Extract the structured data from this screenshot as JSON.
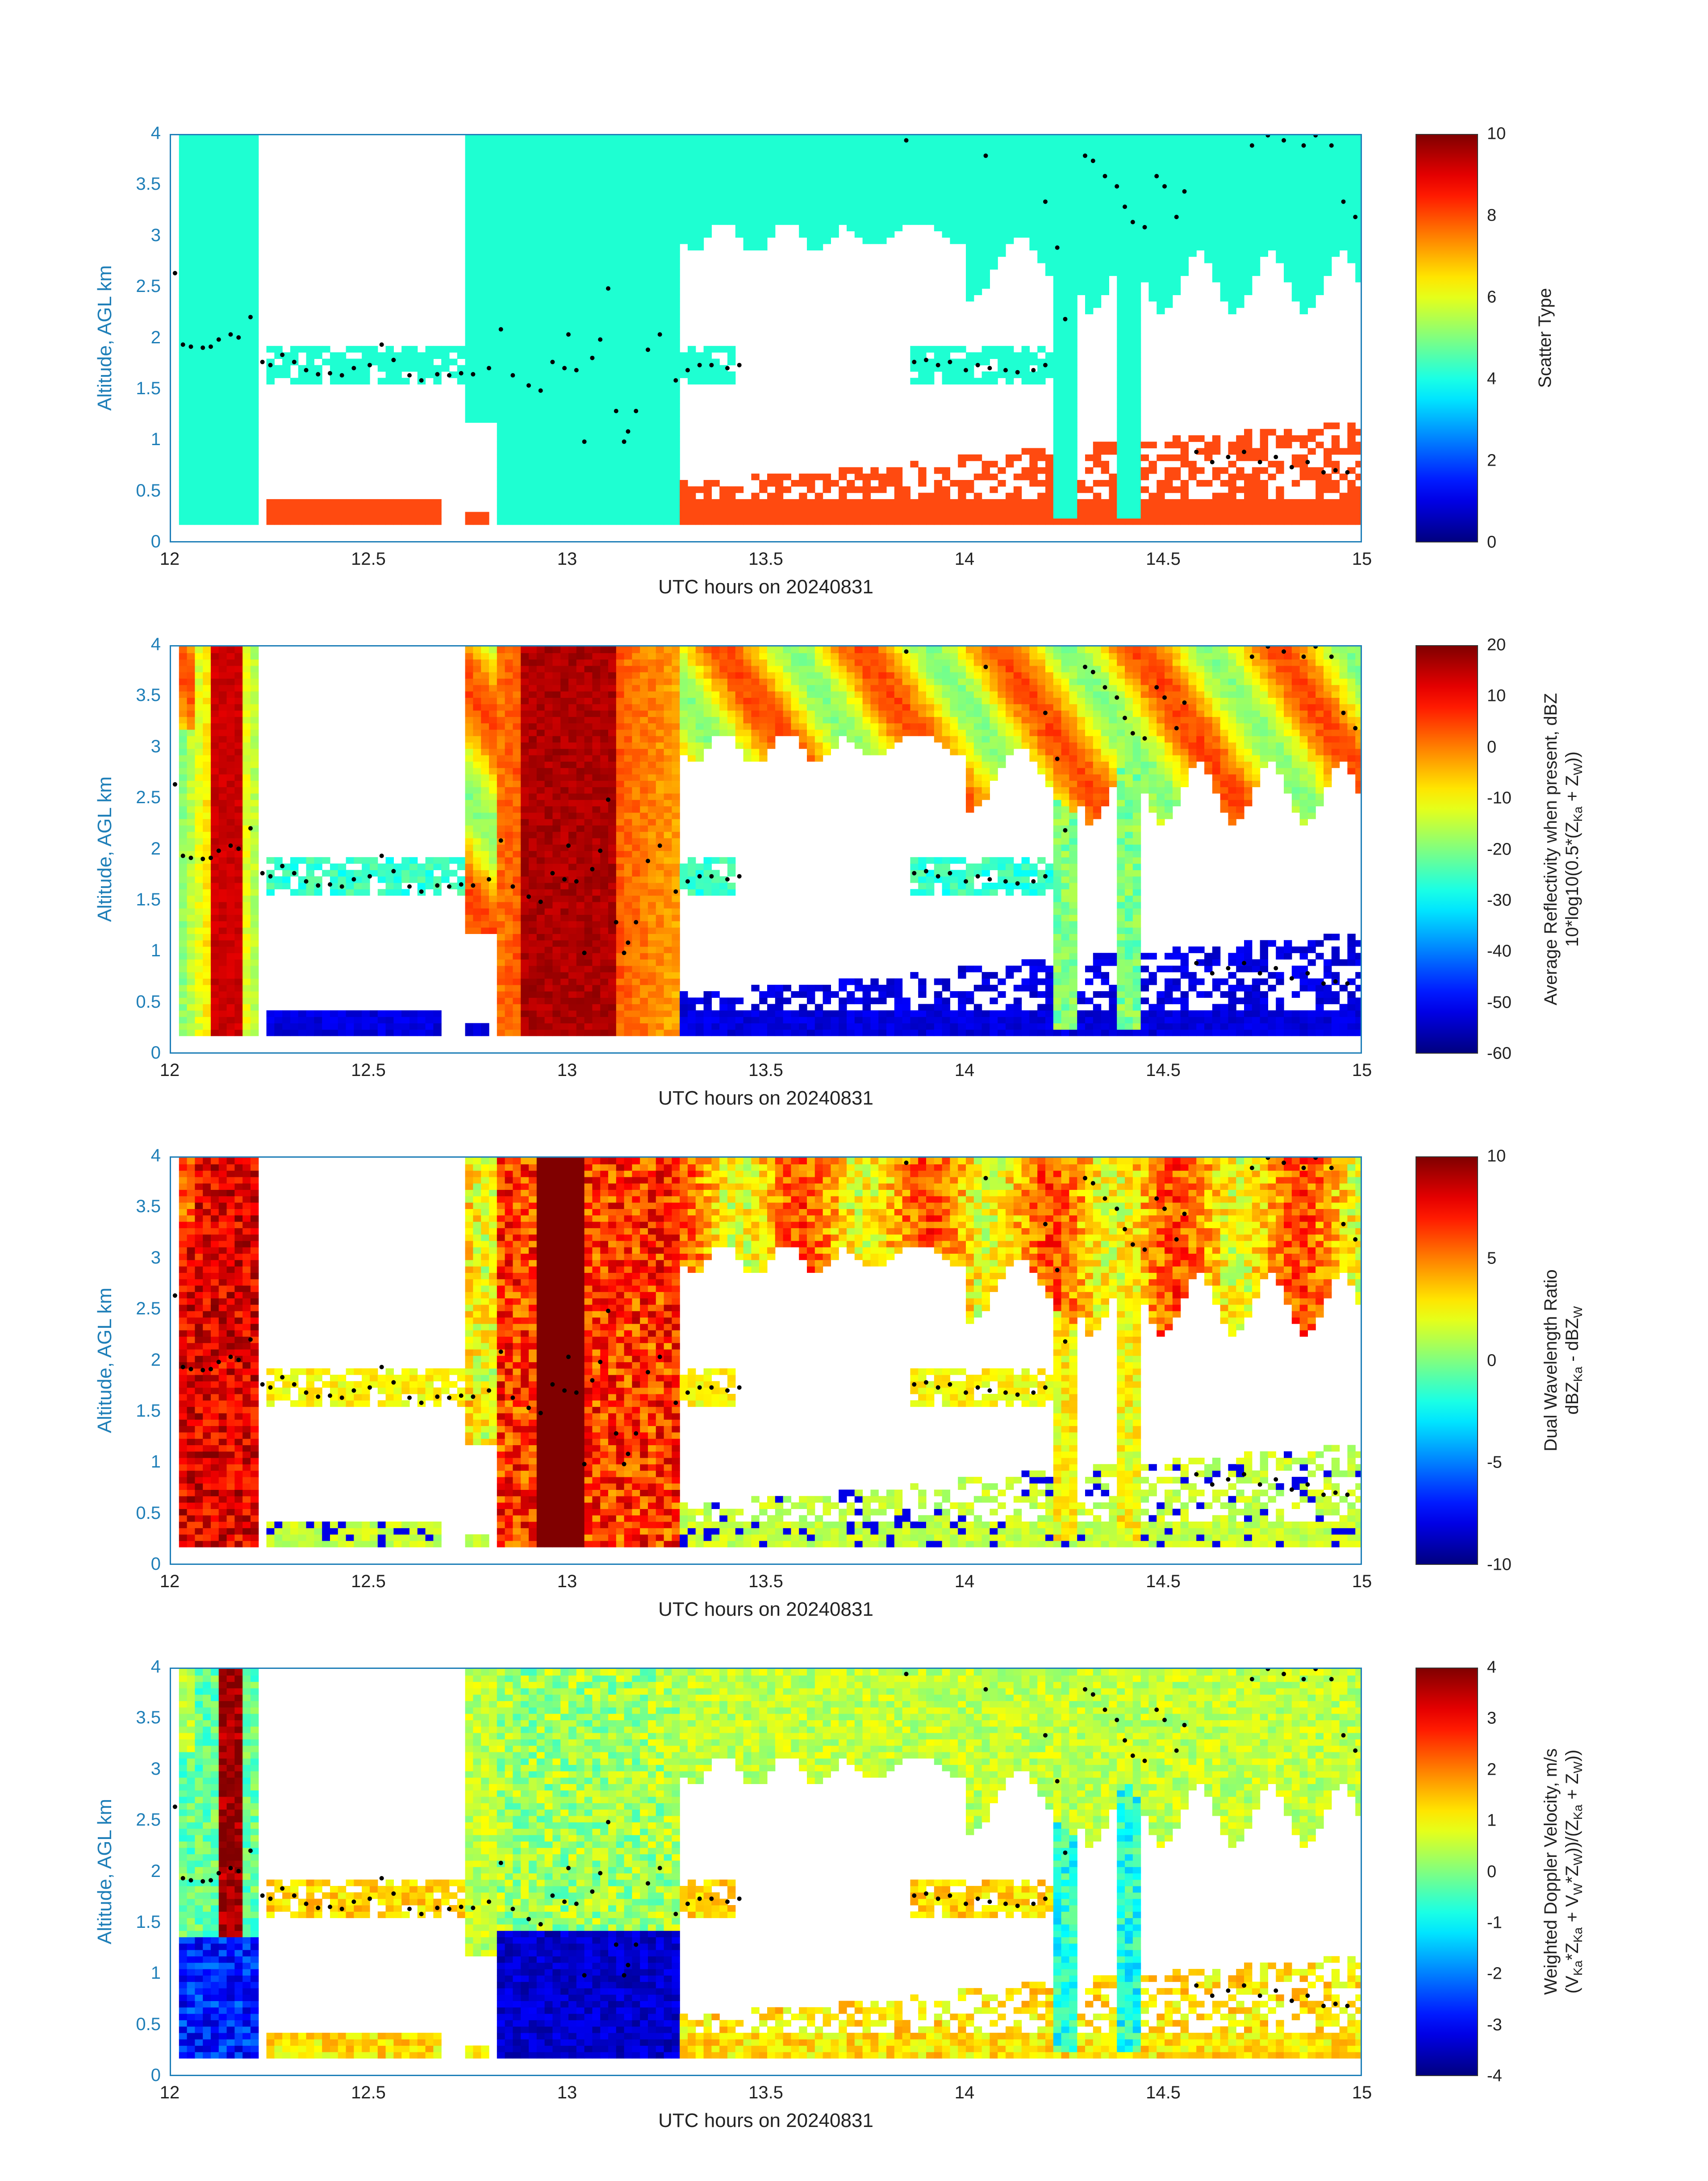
{
  "chart_data": [
    {
      "type": "heatmap",
      "xlabel": "UTC hours on 20240831",
      "ylabel": "Altitude, AGL km",
      "xlim": [
        12,
        15
      ],
      "ylim": [
        0,
        4
      ],
      "xticks": [
        "12",
        "12.5",
        "13",
        "13.5",
        "14",
        "14.5",
        "15"
      ],
      "yticks": [
        "0",
        "0.5",
        "1",
        "1.5",
        "2",
        "2.5",
        "3",
        "3.5",
        "4"
      ],
      "colorbar": {
        "label": "Scatter Type",
        "clim": [
          0,
          10
        ],
        "ticks": [
          "0",
          "2",
          "4",
          "6",
          "8",
          "10"
        ]
      },
      "field": "scatter_type"
    },
    {
      "type": "heatmap",
      "xlabel": "UTC hours on 20240831",
      "ylabel": "Altitude, AGL km",
      "xlim": [
        12,
        15
      ],
      "ylim": [
        0,
        4
      ],
      "xticks": [
        "12",
        "12.5",
        "13",
        "13.5",
        "14",
        "14.5",
        "15"
      ],
      "yticks": [
        "0",
        "0.5",
        "1",
        "1.5",
        "2",
        "2.5",
        "3",
        "3.5",
        "4"
      ],
      "colorbar": {
        "label": "Average Reflectivity when present, dBZ",
        "label2": "10*log10(0.5*(Z",
        "label2_sub1": "Ka",
        "label2_mid": " + Z",
        "label2_sub2": "W",
        "label2_end": "))",
        "clim": [
          -60,
          20
        ],
        "ticks": [
          "-60",
          "-50",
          "-40",
          "-30",
          "-20",
          "-10",
          "0",
          "10",
          "20"
        ]
      },
      "field": "reflectivity"
    },
    {
      "type": "heatmap",
      "xlabel": "UTC hours on 20240831",
      "ylabel": "Altitude, AGL km",
      "xlim": [
        12,
        15
      ],
      "ylim": [
        0,
        4
      ],
      "xticks": [
        "12",
        "12.5",
        "13",
        "13.5",
        "14",
        "14.5",
        "15"
      ],
      "yticks": [
        "0",
        "0.5",
        "1",
        "1.5",
        "2",
        "2.5",
        "3",
        "3.5",
        "4"
      ],
      "colorbar": {
        "label": "Dual Wavelength Ratio",
        "label2": "dBZ",
        "label2_sub1": "Ka",
        "label2_mid": " - dBZ",
        "label2_sub2": "W",
        "label2_end": "",
        "clim": [
          -10,
          10
        ],
        "ticks": [
          "-10",
          "-5",
          "0",
          "5",
          "10"
        ]
      },
      "field": "dwr"
    },
    {
      "type": "heatmap",
      "xlabel": "UTC hours on 20240831",
      "ylabel": "Altitude, AGL km",
      "xlim": [
        12,
        15
      ],
      "ylim": [
        0,
        4
      ],
      "xticks": [
        "12",
        "12.5",
        "13",
        "13.5",
        "14",
        "14.5",
        "15"
      ],
      "yticks": [
        "0",
        "0.5",
        "1",
        "1.5",
        "2",
        "2.5",
        "3",
        "3.5",
        "4"
      ],
      "colorbar": {
        "label": "Weighted Doppler Velocity, m/s",
        "label2": "(V",
        "label2_sub1": "Ka",
        "label2_mid": "*Z",
        "label2_sub2": "Ka",
        "label2_end": " + V",
        "label2_sub3": "W",
        "label2_end2": "*Z",
        "label2_sub4": "W",
        "label2_end3": "))/(Z",
        "label2_sub5": "Ka",
        "label2_end4": " + Z",
        "label2_sub6": "W",
        "label2_end5": "))",
        "clim": [
          -4,
          4
        ],
        "ticks": [
          "-4",
          "-3",
          "-2",
          "-1",
          "0",
          "1",
          "2",
          "3",
          "4"
        ]
      },
      "field": "velocity"
    }
  ],
  "overlay_points": {
    "description_color": "#000000",
    "points": [
      [
        12.01,
        2.65
      ],
      [
        12.03,
        1.95
      ],
      [
        12.05,
        1.93
      ],
      [
        12.08,
        1.92
      ],
      [
        12.1,
        1.93
      ],
      [
        12.12,
        2.0
      ],
      [
        12.15,
        2.05
      ],
      [
        12.17,
        2.02
      ],
      [
        12.2,
        2.22
      ],
      [
        12.23,
        1.78
      ],
      [
        12.25,
        1.75
      ],
      [
        12.28,
        1.85
      ],
      [
        12.31,
        1.78
      ],
      [
        12.34,
        1.7
      ],
      [
        12.37,
        1.66
      ],
      [
        12.4,
        1.67
      ],
      [
        12.43,
        1.65
      ],
      [
        12.46,
        1.72
      ],
      [
        12.5,
        1.75
      ],
      [
        12.53,
        1.95
      ],
      [
        12.56,
        1.8
      ],
      [
        12.6,
        1.65
      ],
      [
        12.63,
        1.6
      ],
      [
        12.67,
        1.66
      ],
      [
        12.7,
        1.65
      ],
      [
        12.73,
        1.67
      ],
      [
        12.76,
        1.66
      ],
      [
        12.8,
        1.72
      ],
      [
        12.83,
        2.1
      ],
      [
        12.86,
        1.65
      ],
      [
        12.9,
        1.55
      ],
      [
        12.93,
        1.5
      ],
      [
        12.96,
        1.78
      ],
      [
        12.99,
        1.72
      ],
      [
        13.02,
        1.7
      ],
      [
        13.04,
        1.0
      ],
      [
        13.06,
        1.82
      ],
      [
        13.08,
        2.0
      ],
      [
        13.1,
        2.5
      ],
      [
        13.12,
        1.3
      ],
      [
        13.14,
        1.0
      ],
      [
        13.17,
        1.3
      ],
      [
        13.2,
        1.9
      ],
      [
        13.23,
        2.05
      ],
      [
        13.27,
        1.6
      ],
      [
        13.3,
        1.7
      ],
      [
        13.33,
        1.75
      ],
      [
        13.36,
        1.75
      ],
      [
        13.4,
        1.72
      ],
      [
        13.43,
        1.75
      ],
      [
        13.87,
        1.78
      ],
      [
        13.9,
        1.8
      ],
      [
        13.93,
        1.75
      ],
      [
        13.96,
        1.78
      ],
      [
        14.0,
        1.7
      ],
      [
        14.03,
        1.75
      ],
      [
        14.06,
        1.72
      ],
      [
        14.1,
        1.7
      ],
      [
        14.13,
        1.68
      ],
      [
        14.17,
        1.7
      ],
      [
        14.2,
        1.75
      ],
      [
        14.23,
        2.9
      ],
      [
        14.2,
        3.35
      ],
      [
        14.25,
        2.2
      ],
      [
        14.3,
        3.8
      ],
      [
        14.32,
        3.75
      ],
      [
        14.35,
        3.6
      ],
      [
        14.38,
        3.5
      ],
      [
        14.4,
        3.3
      ],
      [
        14.42,
        3.15
      ],
      [
        14.45,
        3.1
      ],
      [
        14.48,
        3.6
      ],
      [
        14.5,
        3.5
      ],
      [
        14.53,
        3.2
      ],
      [
        14.55,
        3.45
      ],
      [
        14.58,
        0.9
      ],
      [
        14.62,
        0.8
      ],
      [
        14.66,
        0.85
      ],
      [
        14.7,
        0.9
      ],
      [
        14.74,
        0.8
      ],
      [
        14.78,
        0.85
      ],
      [
        14.82,
        0.75
      ],
      [
        14.86,
        0.8
      ],
      [
        14.9,
        0.7
      ],
      [
        14.93,
        0.72
      ],
      [
        14.96,
        0.7
      ],
      [
        14.72,
        3.9
      ],
      [
        14.76,
        4.0
      ],
      [
        14.8,
        3.95
      ],
      [
        14.85,
        3.9
      ],
      [
        14.88,
        4.0
      ],
      [
        14.92,
        3.9
      ],
      [
        14.95,
        3.35
      ],
      [
        14.98,
        3.2
      ],
      [
        15.0,
        3.05
      ],
      [
        14.05,
        3.8
      ],
      [
        13.85,
        3.95
      ],
      [
        13.15,
        1.1
      ],
      [
        13.0,
        2.05
      ]
    ]
  }
}
